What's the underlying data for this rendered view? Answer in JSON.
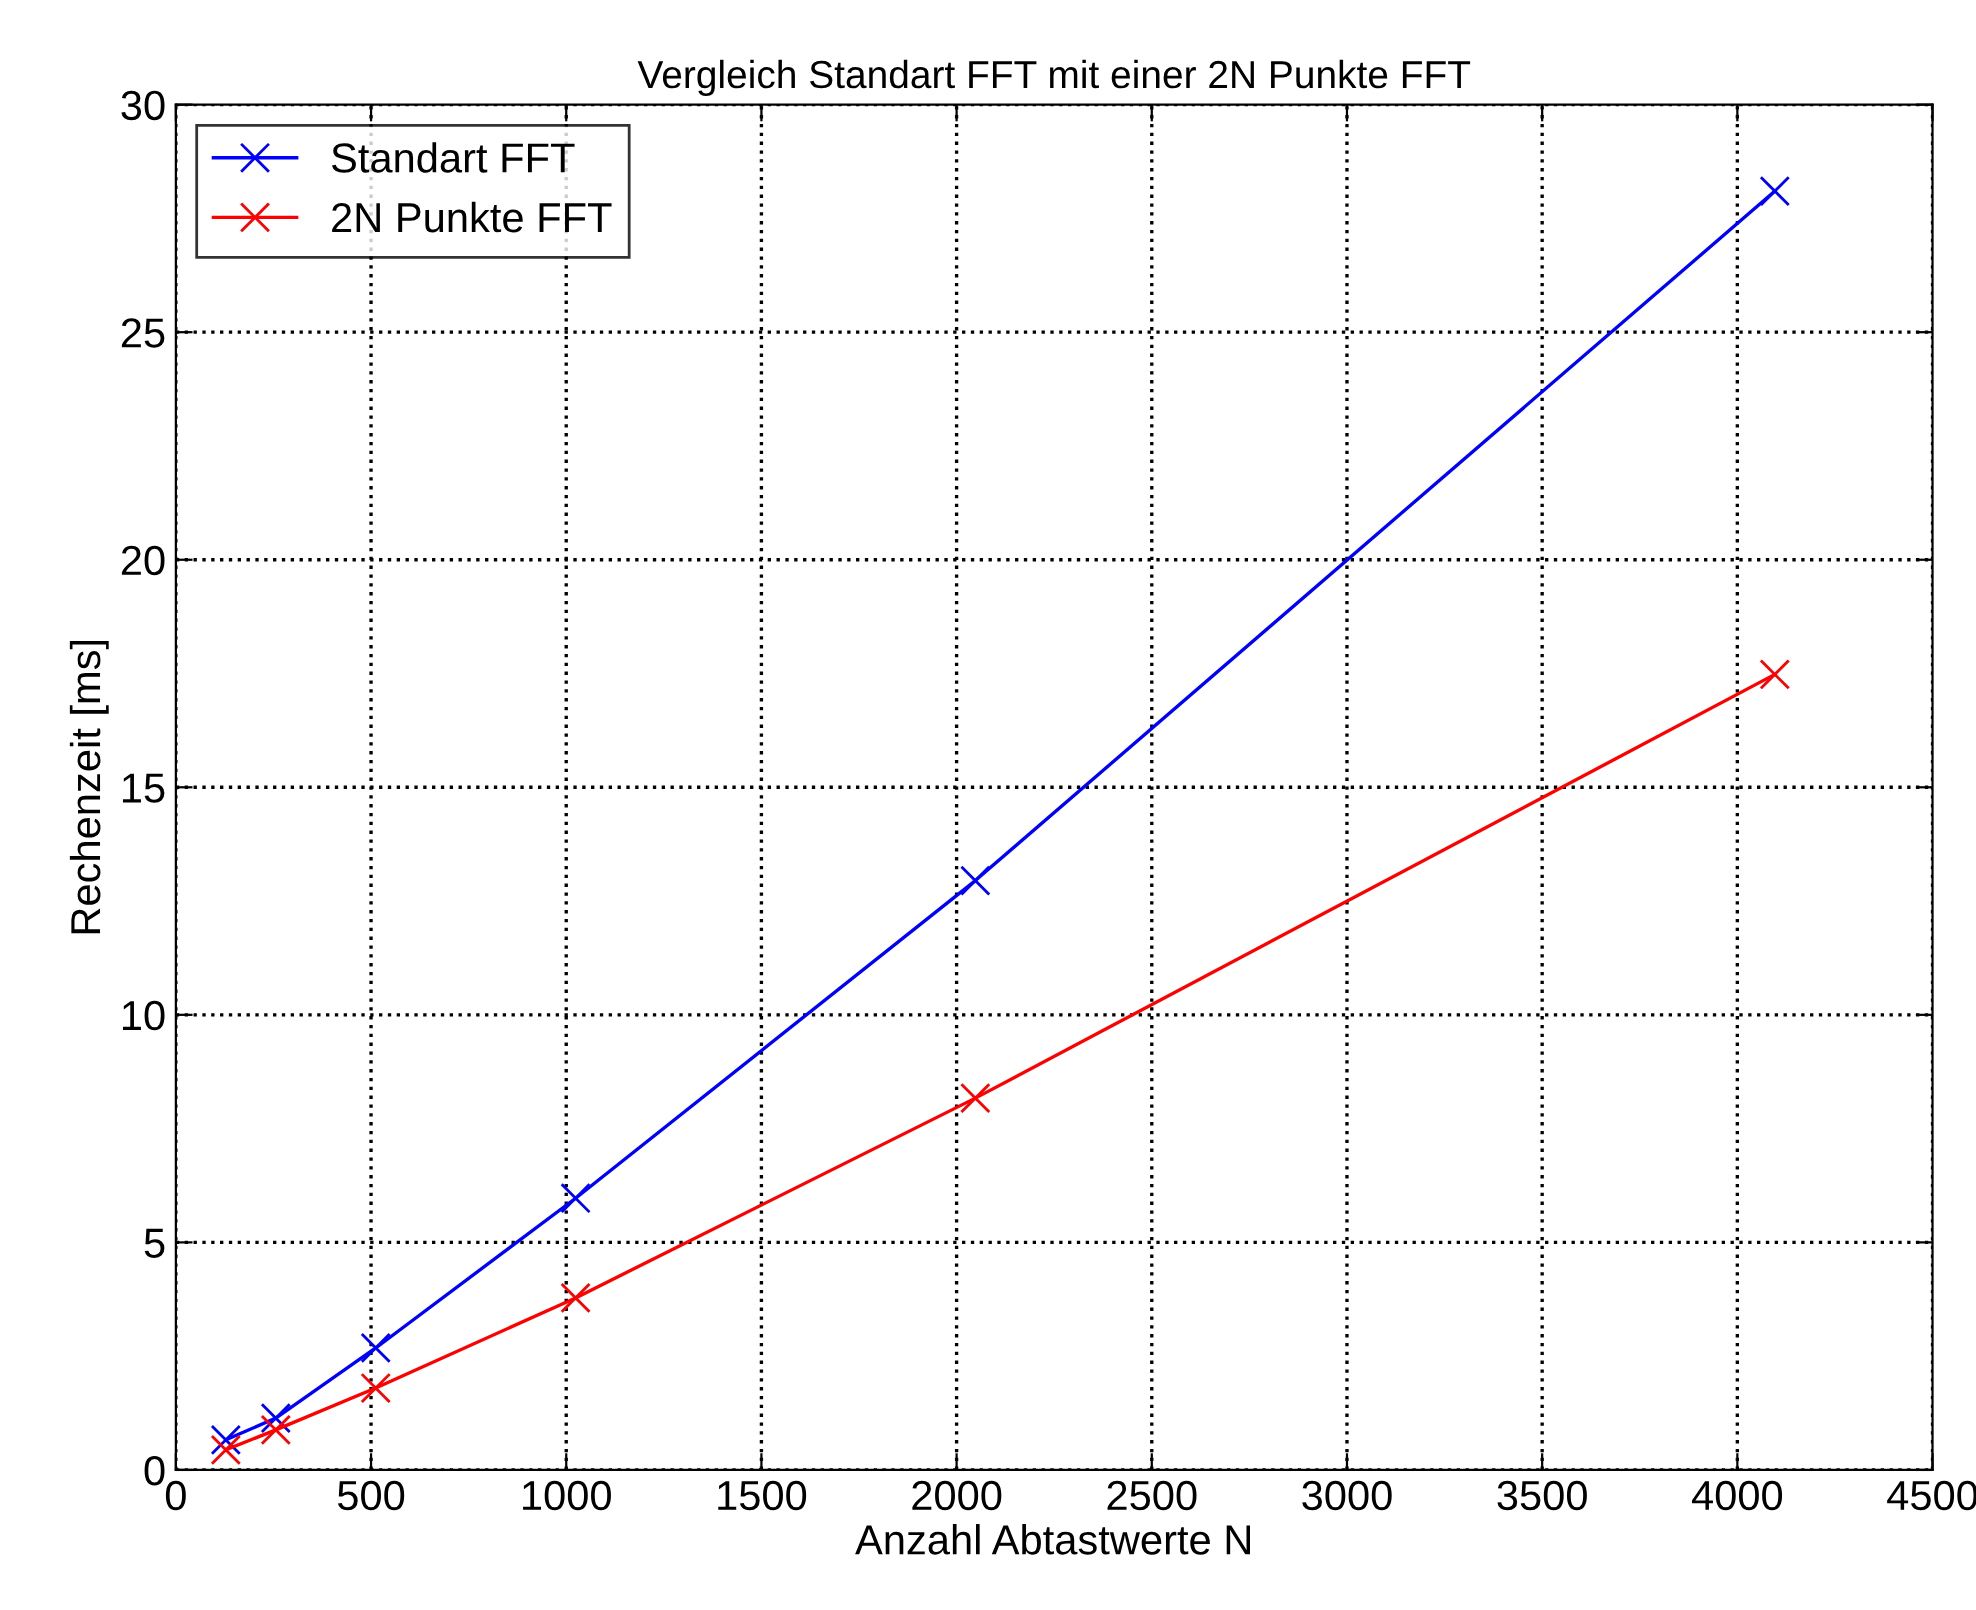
{
  "chart_data": {
    "type": "line",
    "title": "Vergleich Standart FFT mit einer 2N Punkte FFT",
    "xlabel": "Anzahl Abtastwerte N",
    "ylabel": "Rechenzeit [ms]",
    "x": [
      128,
      256,
      512,
      1024,
      2048,
      4096
    ],
    "series": [
      {
        "name": "Standart FFT",
        "color": "#0000ff",
        "values": [
          0.66,
          1.14,
          2.68,
          5.97,
          12.95,
          28.1
        ]
      },
      {
        "name": "2N Punkte FFT",
        "color": "#ff0000",
        "values": [
          0.44,
          0.88,
          1.8,
          3.78,
          8.17,
          17.48
        ]
      }
    ],
    "xlim": [
      0,
      4500
    ],
    "xticks": [
      0,
      500,
      1000,
      1500,
      2000,
      2500,
      3000,
      3500,
      4000,
      4500
    ],
    "ylim": [
      0,
      30
    ],
    "yticks": [
      0,
      5,
      10,
      15,
      20,
      25,
      30
    ],
    "grid": true,
    "legend": "top left",
    "marker": "cross",
    "line_style": "solid"
  }
}
